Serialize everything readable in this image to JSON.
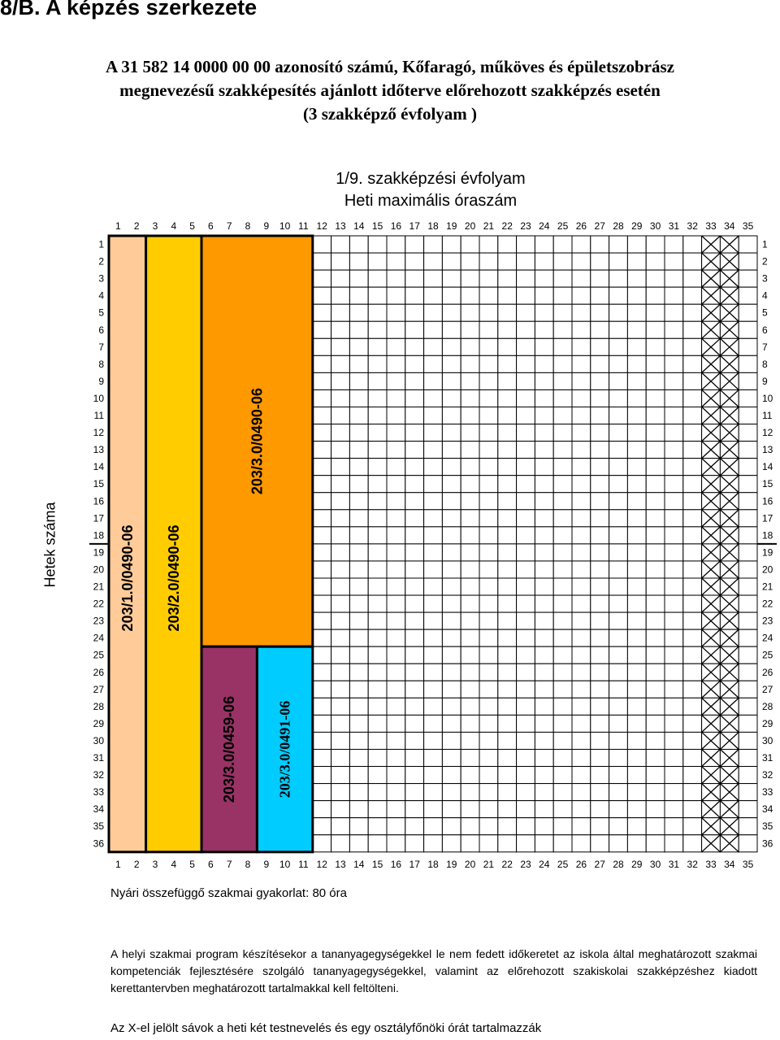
{
  "section_heading": "8/B. A képzés szerkezete",
  "title_lines": [
    "A 31 582 14 0000 00 00 azonosító számú, Kőfaragó, műköves és épületszobrász",
    "megnevezésű szakképesítés ajánlott időterve előrehozott szakképzés esetén",
    "(3 szakképző évfolyam )"
  ],
  "grid_title": "1/9. szakképzési évfolyam",
  "grid_subtitle": "Heti maximális óraszám",
  "y_axis_label": "Hetek száma",
  "column_numbers": [
    "1",
    "2",
    "3",
    "4",
    "5",
    "6",
    "7",
    "8",
    "9",
    "10",
    "11",
    "12",
    "13",
    "14",
    "15",
    "16",
    "17",
    "18",
    "19",
    "20",
    "21",
    "22",
    "23",
    "24",
    "25",
    "26",
    "27",
    "28",
    "29",
    "30",
    "31",
    "32",
    "33",
    "34",
    "35"
  ],
  "row_numbers": [
    "1",
    "2",
    "3",
    "4",
    "5",
    "6",
    "7",
    "8",
    "9",
    "10",
    "11",
    "12",
    "13",
    "14",
    "15",
    "16",
    "17",
    "18",
    "19",
    "20",
    "21",
    "22",
    "23",
    "24",
    "25",
    "26",
    "27",
    "28",
    "29",
    "30",
    "31",
    "32",
    "33",
    "34",
    "35",
    "36"
  ],
  "semester_break_after_week": 18,
  "modules": [
    {
      "label": "203/1.0/0490-06",
      "color": "#ffcc99",
      "col_start": 1,
      "col_end": 2,
      "week_start": 1,
      "week_end": 36
    },
    {
      "label": "203/2.0/0490-06",
      "color": "#ffcc00",
      "col_start": 3,
      "col_end": 5,
      "week_start": 1,
      "week_end": 36
    },
    {
      "label": "203/3.0/0490-06",
      "color": "#ff9900",
      "col_start": 6,
      "col_end": 11,
      "week_start": 1,
      "week_end": 24
    },
    {
      "label": "203/3.0/0459-06",
      "color": "#993366",
      "col_start": 6,
      "col_end": 8,
      "week_start": 25,
      "week_end": 36
    },
    {
      "label": "203/3.0/0491-06",
      "color": "#00ccff",
      "col_start": 9,
      "col_end": 11,
      "week_start": 25,
      "week_end": 36,
      "serif": true
    }
  ],
  "x_marked_columns": [
    33,
    34
  ],
  "summer_practice": "Nyári összefüggő szakmai gyakorlat: 80 óra",
  "paragraph": "A helyi szakmai program készítésekor a tananyagegységekkel le nem fedett időkeretet az iskola által meghatározott szakmai kompetenciák fejlesztésére szolgáló tananyagegységekkel, valamint az előrehozott szakiskolai szakképzéshez kiadott kerettantervben meghatározott tartalmakkal kell feltölteni.",
  "x_note": "Az X-el jelölt sávok a heti két testnevelés és egy osztályfőnöki órát tartalmazzák"
}
